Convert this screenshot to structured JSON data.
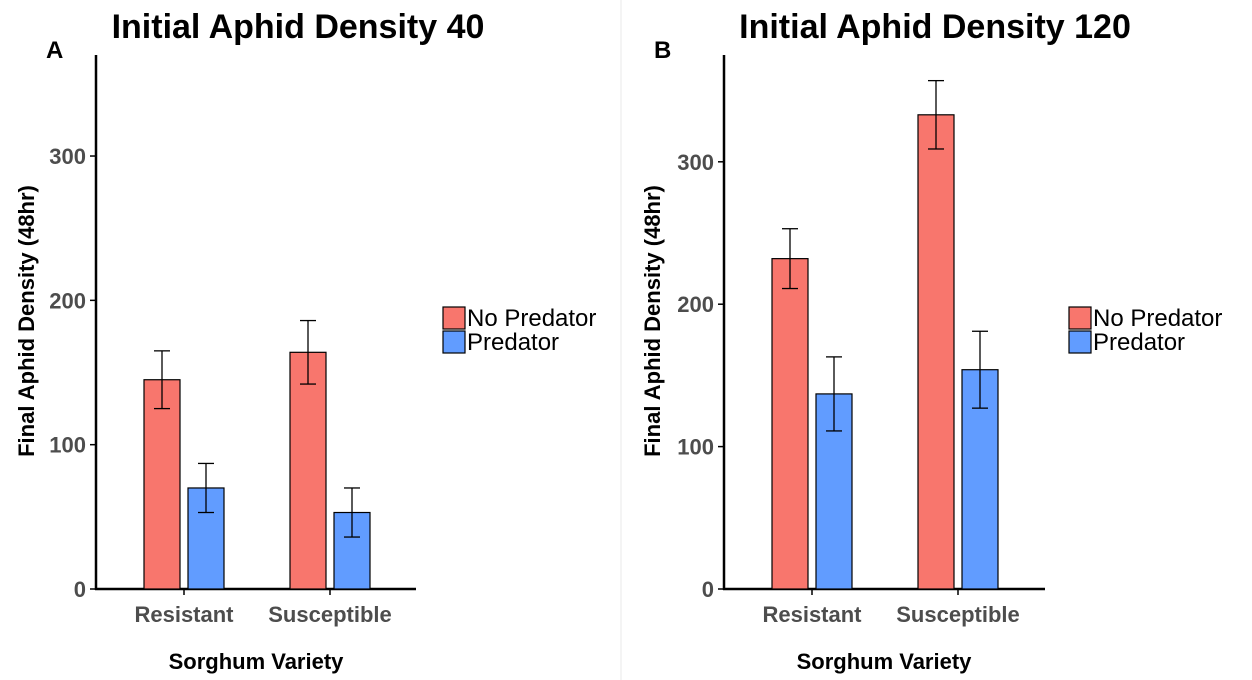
{
  "colors": {
    "no_predator": "#F8766D",
    "predator": "#619CFF",
    "divider": "#e8e8e8"
  },
  "chart_data": [
    {
      "type": "bar",
      "panel": "A",
      "title": "Initial Aphid Density 40",
      "xlabel": "Sorghum Variety",
      "ylabel": "Final Aphid Density (48hr)",
      "categories": [
        "Resistant",
        "Susceptible"
      ],
      "ylim": [
        0,
        370
      ],
      "yticks": [
        0,
        100,
        200,
        300
      ],
      "series": [
        {
          "name": "No Predator",
          "values": [
            145,
            164
          ],
          "errors": [
            20,
            22
          ]
        },
        {
          "name": "Predator",
          "values": [
            70,
            53
          ],
          "errors": [
            17,
            17
          ]
        }
      ],
      "legend": {
        "position": "right",
        "entries": [
          "No Predator",
          "Predator"
        ]
      }
    },
    {
      "type": "bar",
      "panel": "B",
      "title": "Initial Aphid Density 120",
      "xlabel": "Sorghum Variety",
      "ylabel": "Final Aphid Density (48hr)",
      "categories": [
        "Resistant",
        "Susceptible"
      ],
      "ylim": [
        0,
        375
      ],
      "yticks": [
        0,
        100,
        200,
        300
      ],
      "series": [
        {
          "name": "No Predator",
          "values": [
            232,
            333
          ],
          "errors": [
            21,
            24
          ]
        },
        {
          "name": "Predator",
          "values": [
            137,
            154
          ],
          "errors": [
            26,
            27
          ]
        }
      ],
      "legend": {
        "position": "right",
        "entries": [
          "No Predator",
          "Predator"
        ]
      }
    }
  ]
}
